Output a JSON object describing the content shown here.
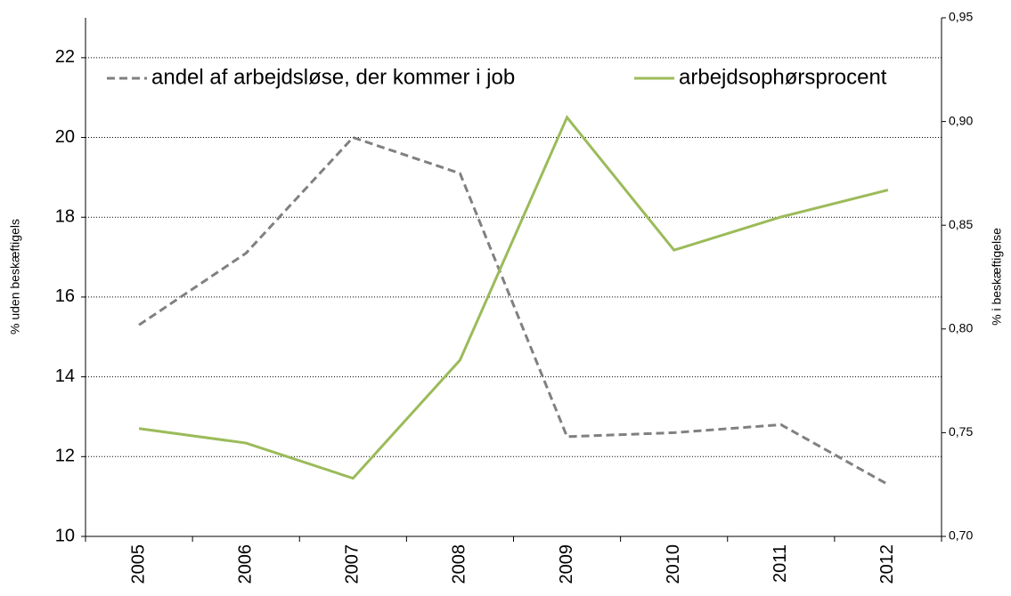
{
  "chart_data": {
    "type": "line",
    "categories": [
      "2005",
      "2006",
      "2007",
      "2008",
      "2009",
      "2010",
      "2011",
      "2012"
    ],
    "y_label": "% uden beskæftigels",
    "y2_label": "% i beskæftigelse",
    "ylim": [
      10,
      23
    ],
    "yticks": [
      10,
      12,
      14,
      16,
      18,
      20,
      22
    ],
    "y2lim": [
      0.7,
      0.95
    ],
    "y2ticks": [
      {
        "value": 0.7,
        "label": "0,70"
      },
      {
        "value": 0.75,
        "label": "0,75"
      },
      {
        "value": 0.8,
        "label": "0,80"
      },
      {
        "value": 0.85,
        "label": "0,85"
      },
      {
        "value": 0.9,
        "label": "0,90"
      },
      {
        "value": 0.95,
        "label": "0,95"
      }
    ],
    "grid": true,
    "legend": "top",
    "series": [
      {
        "name": "andel af arbejdsløse, der kommer i job",
        "color": "#808080",
        "dash": true,
        "values": [
          15.3,
          17.1,
          20.0,
          19.1,
          12.5,
          12.6,
          12.8,
          11.3
        ]
      },
      {
        "name": "arbejdsophørsprocent",
        "color": "#9bbb59",
        "axis": "y2",
        "values": [
          0.752,
          0.745,
          0.728,
          0.785,
          0.902,
          0.838,
          0.854,
          0.867
        ]
      }
    ]
  }
}
